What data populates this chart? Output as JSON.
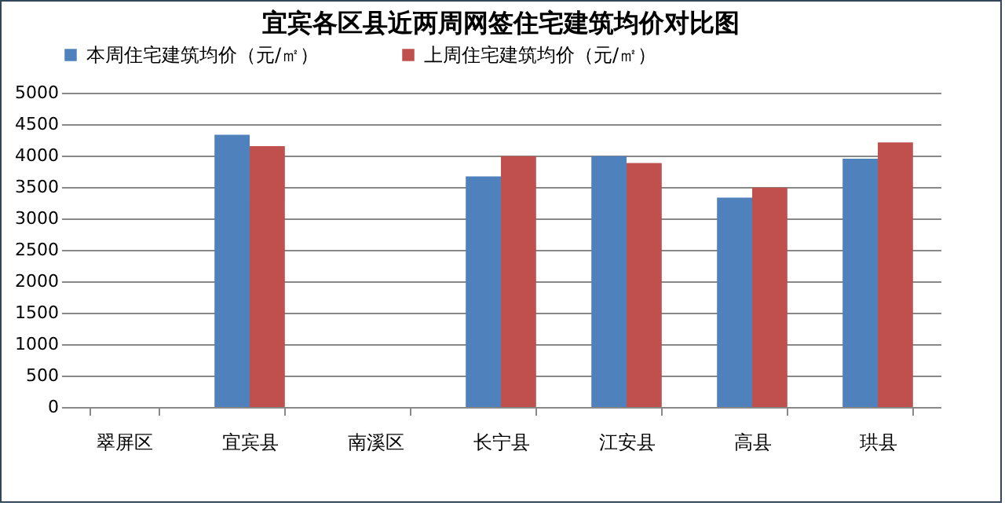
{
  "chart_data": {
    "type": "bar",
    "title": "宜宾各区县近两周网签住宅建筑均价对比图",
    "categories": [
      "翠屏区",
      "宜宾县",
      "南溪区",
      "长宁县",
      "江安县",
      "高县",
      "珙县"
    ],
    "series": [
      {
        "name": "本周住宅建筑均价（元/㎡）",
        "color": "#4f81bd",
        "values": [
          null,
          4330,
          null,
          3670,
          3990,
          3330,
          3950
        ]
      },
      {
        "name": "上周住宅建筑均价（元/㎡）",
        "color": "#c0504d",
        "values": [
          null,
          4150,
          null,
          3990,
          3880,
          3490,
          4210
        ]
      }
    ],
    "ylim": [
      0,
      5000
    ],
    "yticks": [
      0,
      500,
      1000,
      1500,
      2000,
      2500,
      3000,
      3500,
      4000,
      4500,
      5000
    ],
    "grid": "y",
    "legend": "top"
  }
}
